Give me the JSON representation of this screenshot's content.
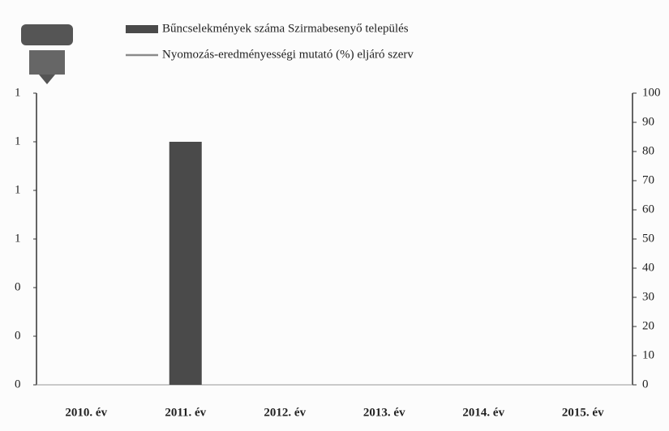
{
  "chart_data": {
    "type": "bar",
    "categories": [
      "2010. év",
      "2011. év",
      "2012. év",
      "2013. év",
      "2014. év",
      "2015. év"
    ],
    "series": [
      {
        "name": "Bűncselekmények száma Szirmabesenyő település",
        "color": "#4a4a4a",
        "values": [
          0,
          1,
          0,
          0,
          0,
          0
        ]
      },
      {
        "name": "Nyomozás-eredményességi mutató (%) eljáró szerv",
        "color": "#8a8a8a",
        "axis": "y2",
        "values": [
          null,
          null,
          null,
          null,
          null,
          null
        ]
      }
    ],
    "ylim": [
      0,
      1.2
    ],
    "yticks": [
      {
        "value": 0,
        "label": "0"
      },
      {
        "value": 0.2,
        "label": "0"
      },
      {
        "value": 0.4,
        "label": "0"
      },
      {
        "value": 0.6,
        "label": "1"
      },
      {
        "value": 0.8,
        "label": "1"
      },
      {
        "value": 1.0,
        "label": "1"
      },
      {
        "value": 1.2,
        "label": "1"
      }
    ],
    "y2lim": [
      0,
      100
    ],
    "y2ticks": [
      0,
      10,
      20,
      30,
      40,
      50,
      60,
      70,
      80,
      90,
      100
    ]
  }
}
